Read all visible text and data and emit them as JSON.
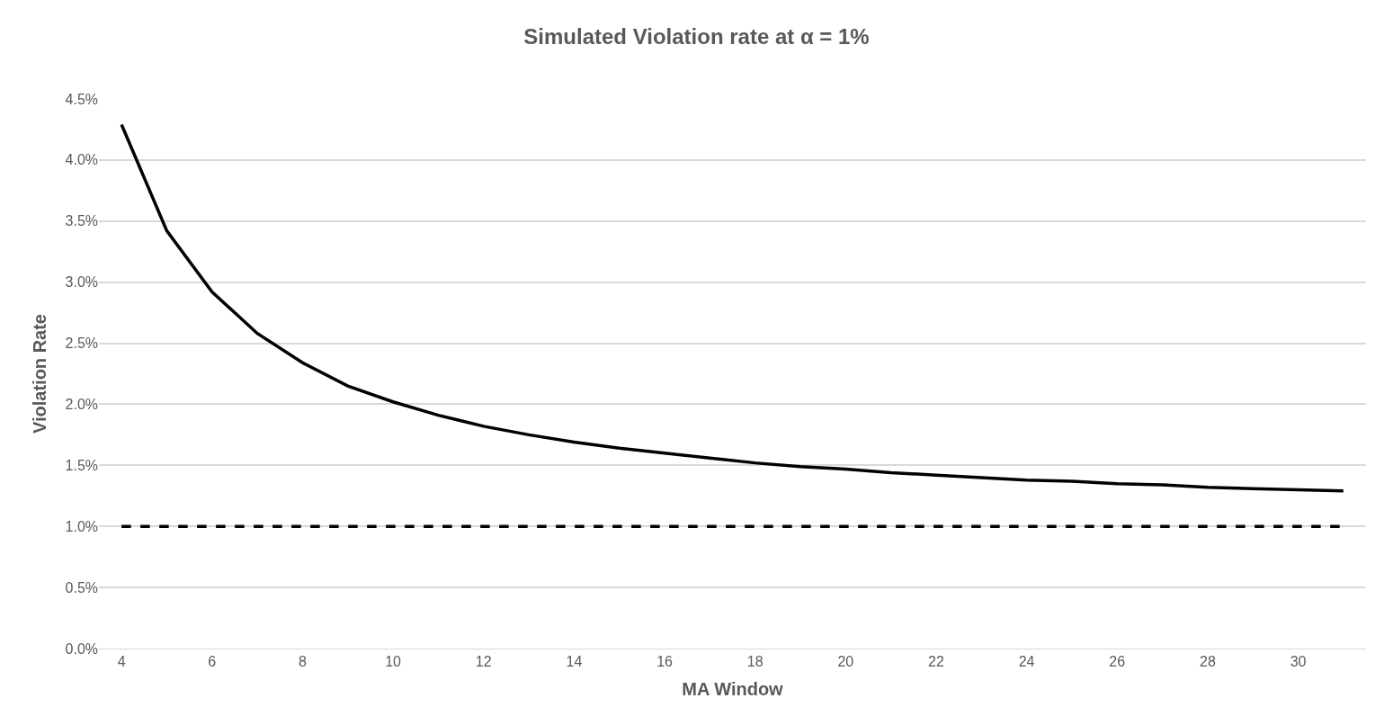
{
  "chart_data": {
    "type": "line",
    "title": "Simulated Violation rate at α = 1%",
    "xlabel": "MA Window",
    "ylabel": "Violation Rate",
    "x": [
      4,
      5,
      6,
      7,
      8,
      9,
      10,
      11,
      12,
      13,
      14,
      15,
      16,
      17,
      18,
      19,
      20,
      21,
      22,
      23,
      24,
      25,
      26,
      27,
      28,
      29,
      30,
      31
    ],
    "series": [
      {
        "color": "#000000",
        "line_style": "solid",
        "values": [
          4.29,
          3.42,
          2.92,
          2.58,
          2.34,
          2.15,
          2.02,
          1.91,
          1.82,
          1.75,
          1.69,
          1.64,
          1.6,
          1.56,
          1.52,
          1.49,
          1.47,
          1.44,
          1.42,
          1.4,
          1.38,
          1.37,
          1.35,
          1.34,
          1.32,
          1.31,
          1.3,
          1.29
        ]
      },
      {
        "color": "#000000",
        "line_style": "dashed",
        "values": [
          1,
          1,
          1,
          1,
          1,
          1,
          1,
          1,
          1,
          1,
          1,
          1,
          1,
          1,
          1,
          1,
          1,
          1,
          1,
          1,
          1,
          1,
          1,
          1,
          1,
          1,
          1,
          1
        ]
      }
    ],
    "xlim": [
      3.5,
      31.5
    ],
    "xticks": [
      4,
      6,
      8,
      10,
      12,
      14,
      16,
      18,
      20,
      22,
      24,
      26,
      28,
      30
    ],
    "ylim": [
      0,
      4.5
    ],
    "yticks": [
      {
        "value": 0,
        "label": "0.0%"
      },
      {
        "value": 0.5,
        "label": "0.5%"
      },
      {
        "value": 1,
        "label": "1.0%"
      },
      {
        "value": 1.5,
        "label": "1.5%"
      },
      {
        "value": 2,
        "label": "2.0%"
      },
      {
        "value": 2.5,
        "label": "2.5%"
      },
      {
        "value": 3,
        "label": "3.0%"
      },
      {
        "value": 3.5,
        "label": "3.5%"
      },
      {
        "value": 4,
        "label": "4.0%"
      },
      {
        "value": 4.5,
        "label": "4.5%"
      }
    ],
    "grid": "y",
    "marker": "none"
  }
}
